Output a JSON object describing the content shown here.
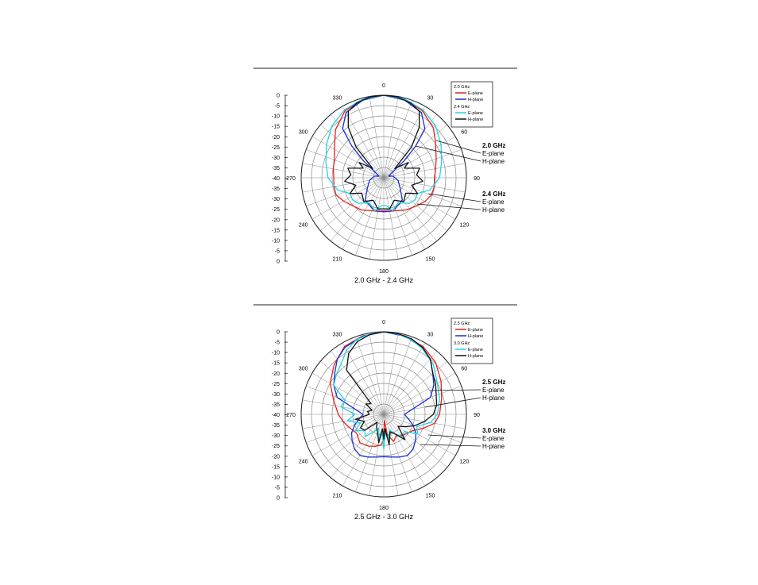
{
  "chart_data": [
    {
      "type": "polar",
      "title": "2.0 GHz - 2.4 GHz",
      "angle_ticks": [
        "0",
        "30",
        "60",
        "90",
        "120",
        "150",
        "180",
        "210",
        "240",
        "270",
        "300",
        "330"
      ],
      "radial_ticks": [
        "0",
        "-5",
        "-10",
        "-15",
        "-20",
        "-25",
        "-30",
        "-35",
        "-40",
        "-35",
        "-30",
        "-25",
        "-20",
        "-15",
        "-10",
        "-5",
        "0"
      ],
      "rlim": [
        -40,
        0
      ],
      "grid": true,
      "legend_position": "top-right",
      "legend": [
        {
          "group": "2.0 GHz",
          "entries": [
            {
              "name": "E-plane",
              "color": "#e8201c"
            },
            {
              "name": "H-plane",
              "color": "#1a2fd6"
            }
          ]
        },
        {
          "group": "2.4 GHz",
          "entries": [
            {
              "name": "E-plane",
              "color": "#22d3e6"
            },
            {
              "name": "H-plane",
              "color": "#111111"
            }
          ]
        }
      ],
      "callouts": [
        {
          "freq": "2.0 GHz",
          "e": "E-plane",
          "h": "H-plane"
        },
        {
          "freq": "2.4 GHz",
          "e": "E-plane",
          "h": "H-plane"
        }
      ],
      "series": [
        {
          "freq": "2.0 GHz",
          "plane": "E-plane",
          "color": "#e8201c",
          "theta": [
            0,
            15,
            30,
            45,
            55,
            70,
            80,
            90,
            100,
            110,
            120,
            130,
            145,
            160,
            170,
            180,
            190,
            200,
            215,
            230,
            240,
            250,
            260,
            270,
            280,
            290,
            305,
            315,
            330,
            345,
            360
          ],
          "r": [
            0,
            -0.8,
            -2.5,
            -6.0,
            -9.5,
            -13.0,
            -14.5,
            -15.5,
            -15.2,
            -15.5,
            -17.0,
            -19.0,
            -21.0,
            -23.0,
            -23.5,
            -24.0,
            -23.5,
            -23.0,
            -21.0,
            -19.5,
            -17.5,
            -15.5,
            -15.5,
            -15.8,
            -15.2,
            -14.5,
            -11.0,
            -7.0,
            -2.5,
            -0.8,
            0
          ]
        },
        {
          "freq": "2.0 GHz",
          "plane": "H-plane",
          "color": "#1a2fd6",
          "theta": [
            0,
            15,
            30,
            40,
            45,
            50,
            60,
            70,
            80,
            90,
            100,
            120,
            140,
            160,
            170,
            180,
            190,
            200,
            220,
            240,
            260,
            270,
            280,
            290,
            300,
            310,
            315,
            320,
            330,
            345,
            360
          ],
          "r": [
            0,
            -1.0,
            -3.5,
            -9.0,
            -18.0,
            -27.0,
            -36.0,
            -37.5,
            -35.5,
            -34.5,
            -33.0,
            -31.0,
            -26.0,
            -24.0,
            -23.5,
            -23.5,
            -23.5,
            -24.0,
            -26.0,
            -31.0,
            -33.0,
            -34.5,
            -35.5,
            -37.5,
            -36.0,
            -27.0,
            -18.0,
            -9.0,
            -3.5,
            -1.0,
            0
          ]
        },
        {
          "freq": "2.4 GHz",
          "plane": "E-plane",
          "color": "#22d3e6",
          "theta": [
            0,
            15,
            30,
            45,
            60,
            75,
            90,
            105,
            115,
            125,
            135,
            150,
            165,
            175,
            185,
            195,
            210,
            225,
            235,
            245,
            255,
            270,
            285,
            300,
            315,
            330,
            345,
            360
          ],
          "r": [
            0,
            -0.5,
            -2.0,
            -4.5,
            -8.0,
            -11.0,
            -13.0,
            -17.0,
            -22.0,
            -21.5,
            -22.5,
            -26.0,
            -23.5,
            -26.5,
            -26.5,
            -23.5,
            -26.0,
            -22.5,
            -21.5,
            -22.0,
            -17.0,
            -13.0,
            -11.0,
            -8.0,
            -4.5,
            -2.0,
            -0.5,
            0
          ]
        },
        {
          "freq": "2.4 GHz",
          "plane": "H-plane",
          "color": "#111111",
          "theta": [
            0,
            10,
            20,
            28,
            35,
            42,
            50,
            58,
            65,
            75,
            85,
            95,
            105,
            115,
            125,
            140,
            155,
            170,
            180,
            190,
            205,
            220,
            235,
            245,
            255,
            265,
            275,
            285,
            295,
            302,
            310,
            318,
            325,
            332,
            340,
            350,
            360
          ],
          "r": [
            0,
            -0.3,
            -1.5,
            -3.5,
            -10.0,
            -20.0,
            -33.0,
            -26.0,
            -29.0,
            -22.0,
            -24.0,
            -21.0,
            -26.0,
            -22.0,
            -27.0,
            -25.0,
            -28.0,
            -24.5,
            -25.0,
            -24.5,
            -28.0,
            -25.0,
            -27.0,
            -22.0,
            -26.0,
            -21.0,
            -24.0,
            -22.0,
            -29.0,
            -26.0,
            -33.0,
            -20.0,
            -10.0,
            -3.5,
            -1.5,
            -0.3,
            0
          ]
        }
      ]
    },
    {
      "type": "polar",
      "title": "2.5 GHz - 3.0 GHz",
      "angle_ticks": [
        "0",
        "30",
        "60",
        "90",
        "120",
        "150",
        "180",
        "210",
        "240",
        "270",
        "300",
        "330"
      ],
      "radial_ticks": [
        "0",
        "-5",
        "-10",
        "-15",
        "-20",
        "-25",
        "-30",
        "-35",
        "-40",
        "-35",
        "-30",
        "-25",
        "-20",
        "-15",
        "-10",
        "-5",
        "0"
      ],
      "rlim": [
        -40,
        0
      ],
      "grid": true,
      "legend_position": "top-right",
      "legend": [
        {
          "group": "2.5 GHz",
          "entries": [
            {
              "name": "E-plane",
              "color": "#e8201c"
            },
            {
              "name": "H-plane",
              "color": "#1a2fd6"
            }
          ]
        },
        {
          "group": "3.0 GHz",
          "entries": [
            {
              "name": "E-plane",
              "color": "#22d3e6"
            },
            {
              "name": "H-plane",
              "color": "#111111"
            }
          ]
        }
      ],
      "callouts": [
        {
          "freq": "2.5 GHz",
          "e": "E-plane",
          "h": "H-plane"
        },
        {
          "freq": "3.0 GHz",
          "e": "E-plane",
          "h": "H-plane"
        }
      ],
      "series": [
        {
          "freq": "2.5 GHz",
          "plane": "E-plane",
          "color": "#e8201c",
          "theta": [
            0,
            15,
            30,
            45,
            60,
            75,
            90,
            100,
            110,
            120,
            135,
            150,
            160,
            170,
            175,
            180,
            185,
            195,
            205,
            220,
            235,
            250,
            260,
            270,
            285,
            300,
            315,
            330,
            345,
            360
          ],
          "r": [
            0,
            -0.6,
            -2.0,
            -4.5,
            -8.0,
            -11.0,
            -13.0,
            -15.0,
            -20.0,
            -24.0,
            -26.0,
            -28.0,
            -26.0,
            -30.0,
            -37.0,
            -28.0,
            -25.0,
            -24.0,
            -23.0,
            -22.0,
            -24.0,
            -22.0,
            -20.0,
            -18.0,
            -15.0,
            -10.0,
            -6.0,
            -2.0,
            -0.6,
            0
          ]
        },
        {
          "freq": "2.5 GHz",
          "plane": "H-plane",
          "color": "#1a2fd6",
          "theta": [
            0,
            15,
            30,
            40,
            50,
            60,
            70,
            80,
            90,
            100,
            110,
            120,
            130,
            140,
            150,
            160,
            170,
            180,
            190,
            200,
            210,
            220,
            230,
            240,
            250,
            260,
            270,
            280,
            290,
            300,
            310,
            320,
            330,
            345,
            360
          ],
          "r": [
            0,
            -0.8,
            -2.5,
            -5.0,
            -9.0,
            -12.0,
            -16.0,
            -26.0,
            -30.0,
            -28.0,
            -25.0,
            -22.0,
            -20.0,
            -18.0,
            -17.0,
            -18.0,
            -19.0,
            -19.5,
            -19.0,
            -18.0,
            -17.0,
            -18.0,
            -20.0,
            -22.0,
            -25.0,
            -28.0,
            -30.0,
            -26.0,
            -16.0,
            -12.0,
            -9.0,
            -5.0,
            -2.5,
            -0.8,
            0
          ]
        },
        {
          "freq": "3.0 GHz",
          "plane": "E-plane",
          "color": "#22d3e6",
          "theta": [
            0,
            10,
            20,
            30,
            45,
            60,
            75,
            90,
            100,
            110,
            120,
            130,
            140,
            150,
            160,
            170,
            175,
            180,
            185,
            190,
            200,
            210,
            220,
            230,
            240,
            250,
            260,
            270,
            280,
            290,
            300,
            310,
            320,
            330,
            340,
            350,
            360
          ],
          "r": [
            0,
            -0.5,
            -1.5,
            -3.0,
            -6.0,
            -10.0,
            -12.0,
            -14.0,
            -17.0,
            -23.0,
            -21.0,
            -27.0,
            -26.0,
            -29.0,
            -32.0,
            -27.0,
            -31.0,
            -23.0,
            -31.0,
            -27.0,
            -33.0,
            -30.0,
            -26.0,
            -28.0,
            -24.0,
            -28.0,
            -22.0,
            -26.0,
            -19.0,
            -20.0,
            -12.0,
            -10.0,
            -8.0,
            -4.0,
            -1.5,
            -0.5,
            0
          ]
        },
        {
          "freq": "3.0 GHz",
          "plane": "H-plane",
          "color": "#111111",
          "theta": [
            0,
            10,
            20,
            30,
            40,
            50,
            60,
            70,
            80,
            90,
            100,
            110,
            120,
            130,
            140,
            150,
            160,
            170,
            175,
            180,
            185,
            190,
            200,
            210,
            220,
            230,
            240,
            250,
            260,
            270,
            280,
            290,
            300,
            310,
            320,
            330,
            340,
            350,
            360
          ],
          "r": [
            0,
            -0.3,
            -1.0,
            -2.5,
            -5.0,
            -9.0,
            -11.0,
            -13.0,
            -14.0,
            -16.0,
            -20.0,
            -24.0,
            -28.0,
            -31.0,
            -24.0,
            -29.0,
            -31.0,
            -25.0,
            -33.0,
            -28.0,
            -33.0,
            -26.0,
            -31.0,
            -33.0,
            -35.0,
            -28.0,
            -27.0,
            -30.0,
            -26.0,
            -33.0,
            -32.0,
            -34.0,
            -30.0,
            -32.0,
            -12.0,
            -6.0,
            -2.5,
            -0.8,
            0
          ]
        }
      ]
    }
  ]
}
